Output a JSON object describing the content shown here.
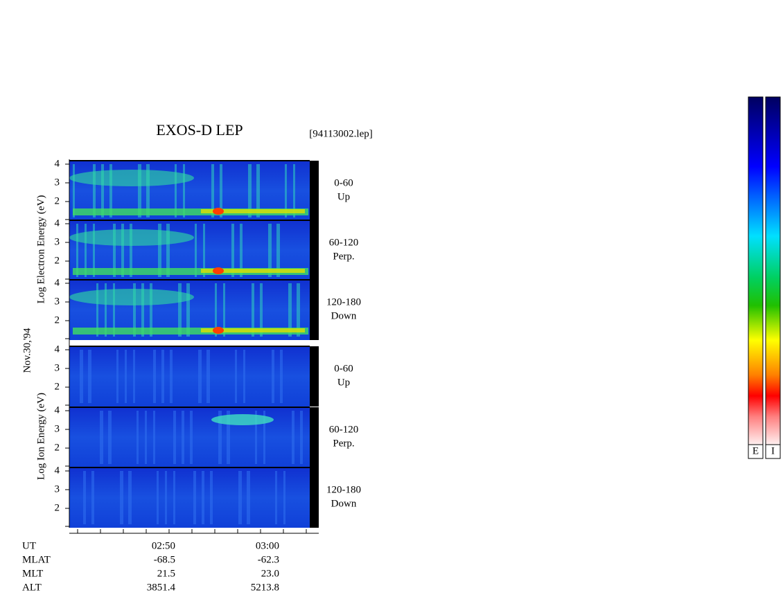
{
  "title": "EXOS-D LEP",
  "file": "[94113002.lep]",
  "date": "Nov.30,'94",
  "electron_axis_label": "Log  Electron  Energy (eV)",
  "ion_axis_label": "Log  Ion  Energy (eV)",
  "energy_ticks": [
    "4",
    "3",
    "2"
  ],
  "panels": [
    {
      "angle": "0-60",
      "direction": "Up"
    },
    {
      "angle": "60-120",
      "direction": "Perp."
    },
    {
      "angle": "120-180",
      "direction": "Down"
    },
    {
      "angle": "0-60",
      "direction": "Up"
    },
    {
      "angle": "60-120",
      "direction": "Perp."
    },
    {
      "angle": "120-180",
      "direction": "Down"
    }
  ],
  "orbit": {
    "row_labels": [
      "UT",
      "MLAT",
      "MLT",
      "ALT"
    ],
    "columns": [
      [
        "02:50",
        "-68.5",
        "21.5",
        "3851.4"
      ],
      [
        "03:00",
        "-62.3",
        "23.0",
        "5213.8"
      ]
    ]
  },
  "colorbars": [
    "E",
    "I"
  ]
}
